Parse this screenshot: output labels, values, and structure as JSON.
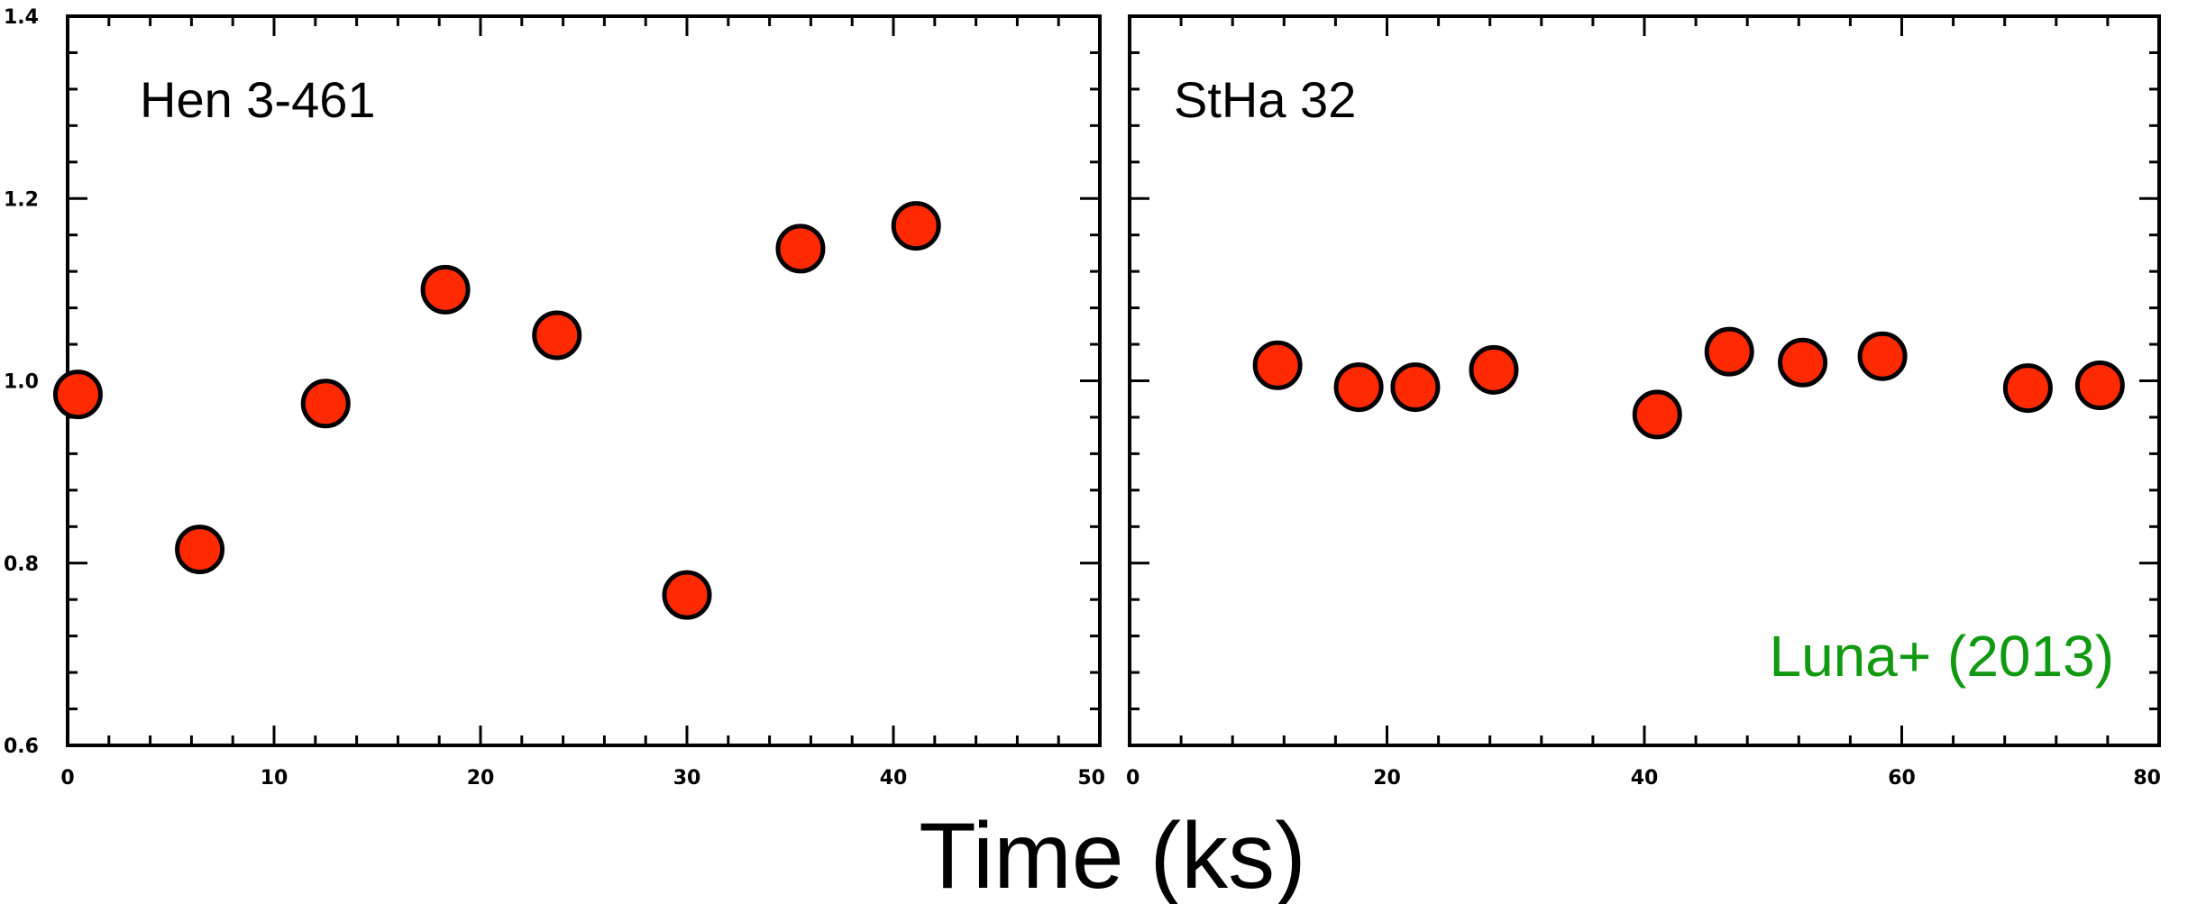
{
  "chart_data": {
    "type": "scatter",
    "xlabel": "Time (ks)",
    "ylabel": "",
    "ylim": [
      0.6,
      1.4
    ],
    "y_ticks": [
      "0.6",
      "0.8",
      "1.0",
      "1.2",
      "1.4"
    ],
    "marker_color": "#ff2a00",
    "panels": [
      {
        "label": "Hen 3-461",
        "xlim": [
          0,
          50
        ],
        "x_ticks": [
          "0",
          "10",
          "20",
          "30",
          "40",
          "50"
        ],
        "x": [
          0.5,
          6.4,
          12.5,
          18.3,
          23.7,
          30.0,
          35.5,
          41.1
        ],
        "y": [
          0.985,
          0.815,
          0.975,
          1.1,
          1.05,
          0.765,
          1.145,
          1.17
        ]
      },
      {
        "label": "StHa 32",
        "xlim": [
          0,
          80
        ],
        "x_ticks": [
          "0",
          "20",
          "40",
          "60",
          "80"
        ],
        "x": [
          11.5,
          17.8,
          22.2,
          28.3,
          41.0,
          46.6,
          52.3,
          58.5,
          69.8,
          75.4
        ],
        "y": [
          1.017,
          0.993,
          0.993,
          1.012,
          0.963,
          1.032,
          1.02,
          1.027,
          0.992,
          0.995
        ]
      }
    ],
    "annotation": {
      "text": "Luna+ (2013)",
      "color": "#119911",
      "position": "bottom-right of right panel"
    }
  }
}
